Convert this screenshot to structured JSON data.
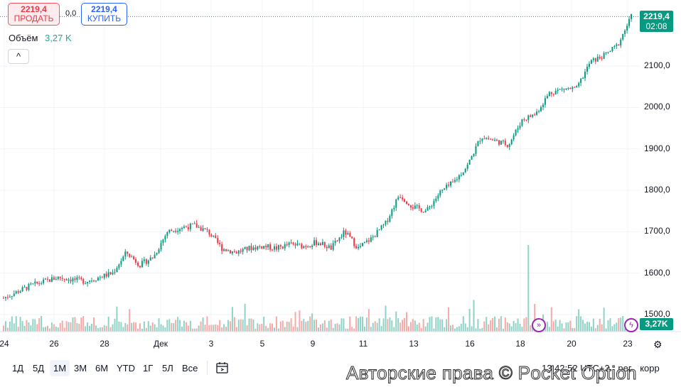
{
  "trade": {
    "sell_price": "2219,4",
    "sell_label": "ПРОДАТЬ",
    "spread": "0,0",
    "buy_price": "2219,4",
    "buy_label": "КУПИТЬ"
  },
  "volume_legend": {
    "label": "Объём",
    "value": "3,27 K"
  },
  "collapse_glyph": "^",
  "price_tag": {
    "price": "2219,4",
    "countdown": "02:08"
  },
  "volume_tag": "3,27K",
  "price_axis": [
    "2100,0",
    "2000,0",
    "1900,0",
    "1800,0",
    "1700,0",
    "1600,0",
    "1500,0"
  ],
  "date_axis": [
    "24",
    "26",
    "28",
    "Дек",
    "3",
    "5",
    "9",
    "11",
    "13",
    "16",
    "18",
    "20",
    "23"
  ],
  "timeframes": [
    "1Д",
    "5Д",
    "1М",
    "3М",
    "6М",
    "YTD",
    "1Г",
    "5Л",
    "Все"
  ],
  "active_timeframe": "1М",
  "clock": "13:42:52 UTC+3",
  "session": "рег",
  "corr": "корр",
  "watermark": "Авторские права © Pocket Option",
  "colors": {
    "up": "#089981",
    "down": "#f23645",
    "vol_up": "#8fd3c6",
    "vol_down": "#f7a9a7",
    "grid": "#f0f3fa",
    "accent": "#2962ff"
  },
  "icons": {
    "calendar": "calendar-range-icon",
    "settings": "gear-icon",
    "event1": "double-chevron-icon",
    "event2": "lightning-icon"
  },
  "chart_data": {
    "type": "candlestick",
    "symbol_last": 2219.4,
    "ylim": [
      1480,
      2240
    ],
    "y_ticks": [
      1500,
      1600,
      1700,
      1800,
      1900,
      2000,
      2100
    ],
    "x_ticks": [
      "24",
      "26",
      "28",
      "Дек",
      "3",
      "5",
      "9",
      "11",
      "13",
      "16",
      "18",
      "20",
      "23"
    ],
    "close_path": [
      {
        "t": 0,
        "v": 1540
      },
      {
        "t": 2,
        "v": 1570
      },
      {
        "t": 4,
        "v": 1590
      },
      {
        "t": 6,
        "v": 1580
      },
      {
        "t": 8,
        "v": 1600
      },
      {
        "t": 9,
        "v": 1650
      },
      {
        "t": 10,
        "v": 1620
      },
      {
        "t": 11,
        "v": 1640
      },
      {
        "t": 12,
        "v": 1700
      },
      {
        "t": 13,
        "v": 1710
      },
      {
        "t": 14,
        "v": 1715
      },
      {
        "t": 15,
        "v": 1700
      },
      {
        "t": 16,
        "v": 1660
      },
      {
        "t": 17,
        "v": 1650
      },
      {
        "t": 18,
        "v": 1660
      },
      {
        "t": 19,
        "v": 1665
      },
      {
        "t": 20,
        "v": 1660
      },
      {
        "t": 21,
        "v": 1670
      },
      {
        "t": 22,
        "v": 1665
      },
      {
        "t": 23,
        "v": 1675
      },
      {
        "t": 24,
        "v": 1660
      },
      {
        "t": 25,
        "v": 1700
      },
      {
        "t": 26,
        "v": 1660
      },
      {
        "t": 27,
        "v": 1685
      },
      {
        "t": 28,
        "v": 1720
      },
      {
        "t": 29,
        "v": 1790
      },
      {
        "t": 30,
        "v": 1760
      },
      {
        "t": 31,
        "v": 1750
      },
      {
        "t": 32,
        "v": 1795
      },
      {
        "t": 33,
        "v": 1820
      },
      {
        "t": 34,
        "v": 1860
      },
      {
        "t": 35,
        "v": 1930
      },
      {
        "t": 36,
        "v": 1920
      },
      {
        "t": 37,
        "v": 1910
      },
      {
        "t": 38,
        "v": 1970
      },
      {
        "t": 39,
        "v": 1985
      },
      {
        "t": 40,
        "v": 2035
      },
      {
        "t": 41,
        "v": 2045
      },
      {
        "t": 42,
        "v": 2045
      },
      {
        "t": 43,
        "v": 2110
      },
      {
        "t": 44,
        "v": 2125
      },
      {
        "t": 45,
        "v": 2150
      },
      {
        "t": 46,
        "v": 2219
      }
    ]
  }
}
